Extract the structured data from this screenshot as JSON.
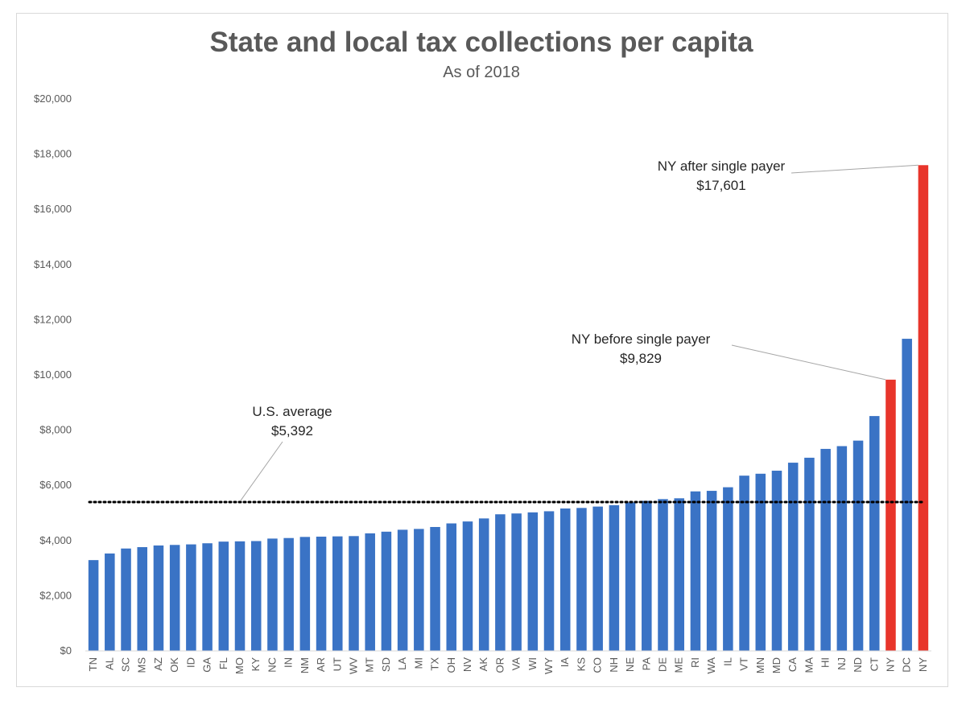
{
  "chart_data": {
    "type": "bar",
    "title": "State and local tax collections per capita",
    "subtitle": "As of 2018",
    "xlabel": "",
    "ylabel": "",
    "ylim": [
      0,
      20000
    ],
    "yticks": [
      0,
      2000,
      4000,
      6000,
      8000,
      10000,
      12000,
      14000,
      16000,
      18000,
      20000
    ],
    "ytick_labels": [
      "$0",
      "$2,000",
      "$4,000",
      "$6,000",
      "$8,000",
      "$10,000",
      "$12,000",
      "$14,000",
      "$16,000",
      "$18,000",
      "$20,000"
    ],
    "grid": false,
    "categories": [
      "TN",
      "AL",
      "SC",
      "MS",
      "AZ",
      "OK",
      "ID",
      "GA",
      "FL",
      "MO",
      "KY",
      "NC",
      "IN",
      "NM",
      "AR",
      "UT",
      "WV",
      "MT",
      "SD",
      "LA",
      "MI",
      "TX",
      "OH",
      "NV",
      "AK",
      "OR",
      "VA",
      "WI",
      "WY",
      "IA",
      "KS",
      "CO",
      "NH",
      "NE",
      "PA",
      "DE",
      "ME",
      "RI",
      "WA",
      "IL",
      "VT",
      "MN",
      "MD",
      "CA",
      "MA",
      "HI",
      "NJ",
      "ND",
      "CT",
      "NY",
      "DC",
      "NY"
    ],
    "values": [
      3290,
      3530,
      3710,
      3760,
      3820,
      3840,
      3860,
      3900,
      3960,
      3970,
      3980,
      4070,
      4090,
      4130,
      4140,
      4150,
      4160,
      4260,
      4320,
      4390,
      4420,
      4490,
      4620,
      4690,
      4800,
      4950,
      4980,
      5020,
      5060,
      5160,
      5180,
      5230,
      5280,
      5380,
      5440,
      5500,
      5530,
      5780,
      5800,
      5930,
      6350,
      6420,
      6530,
      6820,
      7000,
      7320,
      7420,
      7620,
      8510,
      9829,
      11310,
      17601
    ],
    "colors": {
      "default": "#3a73c5",
      "highlight": "#e8352b",
      "average_line": "#000000"
    },
    "highlight_indices": [
      49,
      51
    ],
    "reference_line": {
      "label": "U.S. average",
      "value": 5392,
      "value_label": "$5,392",
      "style": "dotted"
    },
    "annotations": [
      {
        "label": "NY after single payer",
        "value_label": "$17,601",
        "bar_index": 51
      },
      {
        "label": "NY before single payer",
        "value_label": "$9,829",
        "bar_index": 49
      }
    ]
  }
}
